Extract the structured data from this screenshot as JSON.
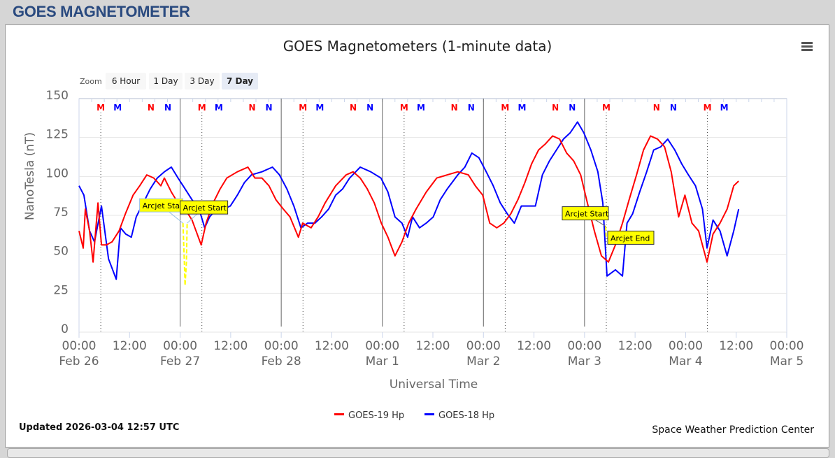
{
  "page_header": "GOES MAGNETOMETER",
  "zoom": {
    "label": "Zoom",
    "buttons": [
      "6 Hour",
      "1 Day",
      "3 Day",
      "7 Day"
    ],
    "selected": "7 Day"
  },
  "updated": "Updated 2026-03-04 12:57 UTC",
  "credit": "Space Weather Prediction Center",
  "menu_icon": "hamburger-menu-icon",
  "chart_data": {
    "type": "line",
    "title": "GOES Magnetometers (1-minute data)",
    "xlabel": "Universal Time",
    "ylabel": "NanoTesla (nT)",
    "ylim": [
      0,
      150
    ],
    "yticks": [
      "0",
      "25",
      "50",
      "75",
      "100",
      "125",
      "150"
    ],
    "xlim": [
      "2026-02-26T00:00",
      "2026-03-05T00:00"
    ],
    "xticks": [
      {
        "t": "2026-02-26T00:00",
        "time": "00:00",
        "date": "Feb 26"
      },
      {
        "t": "2026-02-26T12:00",
        "time": "12:00",
        "date": ""
      },
      {
        "t": "2026-02-27T00:00",
        "time": "00:00",
        "date": "Feb 27"
      },
      {
        "t": "2026-02-27T12:00",
        "time": "12:00",
        "date": ""
      },
      {
        "t": "2026-02-28T00:00",
        "time": "00:00",
        "date": "Feb 28"
      },
      {
        "t": "2026-02-28T12:00",
        "time": "12:00",
        "date": ""
      },
      {
        "t": "2026-03-01T00:00",
        "time": "00:00",
        "date": "Mar 1"
      },
      {
        "t": "2026-03-01T12:00",
        "time": "12:00",
        "date": ""
      },
      {
        "t": "2026-03-02T00:00",
        "time": "00:00",
        "date": "Mar 2"
      },
      {
        "t": "2026-03-02T12:00",
        "time": "12:00",
        "date": ""
      },
      {
        "t": "2026-03-03T00:00",
        "time": "00:00",
        "date": "Mar 3"
      },
      {
        "t": "2026-03-03T12:00",
        "time": "12:00",
        "date": ""
      },
      {
        "t": "2026-03-04T00:00",
        "time": "00:00",
        "date": "Mar 4"
      },
      {
        "t": "2026-03-04T12:00",
        "time": "12:00",
        "date": ""
      },
      {
        "t": "2026-03-05T00:00",
        "time": "00:00",
        "date": "Mar 5"
      }
    ],
    "grid": true,
    "legend_position": "bottom",
    "series": [
      {
        "name": "GOES-19 Hp",
        "color": "#ff0000",
        "points": [
          [
            "2026-02-26T00:00",
            65
          ],
          [
            "2026-02-26T01:00",
            54
          ],
          [
            "2026-02-26T01:30",
            79
          ],
          [
            "2026-02-26T02:30",
            65
          ],
          [
            "2026-02-26T03:20",
            45
          ],
          [
            "2026-02-26T04:30",
            83
          ],
          [
            "2026-02-26T05:20",
            56
          ],
          [
            "2026-02-26T06:30",
            56
          ],
          [
            "2026-02-26T07:50",
            58
          ],
          [
            "2026-02-26T09:30",
            65
          ],
          [
            "2026-02-26T11:00",
            76
          ],
          [
            "2026-02-26T12:50",
            88
          ],
          [
            "2026-02-26T14:25",
            94
          ],
          [
            "2026-02-26T16:05",
            101
          ],
          [
            "2026-02-26T17:45",
            99
          ],
          [
            "2026-02-26T19:25",
            94
          ],
          [
            "2026-02-26T20:15",
            99
          ],
          [
            "2026-02-26T21:55",
            90
          ],
          [
            "2026-02-26T23:30",
            83
          ],
          [
            "2026-02-27T01:10",
            79
          ],
          [
            "2026-02-27T02:50",
            72
          ],
          [
            "2026-02-27T05:00",
            56
          ],
          [
            "2026-02-27T06:10",
            70
          ],
          [
            "2026-02-27T07:50",
            83
          ],
          [
            "2026-02-27T09:30",
            92
          ],
          [
            "2026-02-27T11:05",
            99
          ],
          [
            "2026-02-27T13:35",
            103
          ],
          [
            "2026-02-27T16:05",
            106
          ],
          [
            "2026-02-27T17:45",
            99
          ],
          [
            "2026-02-27T19:25",
            99
          ],
          [
            "2026-02-27T21:05",
            94
          ],
          [
            "2026-02-27T22:45",
            85
          ],
          [
            "2026-02-28T00:30",
            79
          ],
          [
            "2026-02-28T02:05",
            74
          ],
          [
            "2026-02-28T04:05",
            61
          ],
          [
            "2026-02-28T05:05",
            70
          ],
          [
            "2026-02-28T07:05",
            67
          ],
          [
            "2026-02-28T08:45",
            74
          ],
          [
            "2026-02-28T10:25",
            83
          ],
          [
            "2026-02-28T12:55",
            94
          ],
          [
            "2026-02-28T15:25",
            101
          ],
          [
            "2026-02-28T17:05",
            103
          ],
          [
            "2026-02-28T18:45",
            99
          ],
          [
            "2026-02-28T20:25",
            92
          ],
          [
            "2026-02-28T22:05",
            83
          ],
          [
            "2026-02-28T23:45",
            70
          ],
          [
            "2026-03-01T01:20",
            61
          ],
          [
            "2026-03-01T03:00",
            49
          ],
          [
            "2026-03-01T04:40",
            58
          ],
          [
            "2026-03-01T06:15",
            70
          ],
          [
            "2026-03-01T08:00",
            79
          ],
          [
            "2026-03-01T10:25",
            90
          ],
          [
            "2026-03-01T12:55",
            99
          ],
          [
            "2026-03-01T15:25",
            101
          ],
          [
            "2026-03-01T17:55",
            103
          ],
          [
            "2026-03-01T20:25",
            101
          ],
          [
            "2026-03-01T22:05",
            94
          ],
          [
            "2026-03-01T23:50",
            88
          ],
          [
            "2026-03-02T01:30",
            70
          ],
          [
            "2026-03-02T03:10",
            67
          ],
          [
            "2026-03-02T04:50",
            70
          ],
          [
            "2026-03-02T06:30",
            76
          ],
          [
            "2026-03-02T08:10",
            85
          ],
          [
            "2026-03-02T09:50",
            96
          ],
          [
            "2026-03-02T11:25",
            108
          ],
          [
            "2026-03-02T13:05",
            117
          ],
          [
            "2026-03-02T14:45",
            121
          ],
          [
            "2026-03-02T16:25",
            126
          ],
          [
            "2026-03-02T18:05",
            124
          ],
          [
            "2026-03-02T19:45",
            115
          ],
          [
            "2026-03-02T21:25",
            110
          ],
          [
            "2026-03-02T23:05",
            101
          ],
          [
            "2026-03-03T00:40",
            83
          ],
          [
            "2026-03-03T02:20",
            65
          ],
          [
            "2026-03-03T04:00",
            49
          ],
          [
            "2026-03-03T05:40",
            45
          ],
          [
            "2026-03-03T07:20",
            56
          ],
          [
            "2026-03-03T09:00",
            70
          ],
          [
            "2026-03-03T10:35",
            85
          ],
          [
            "2026-03-03T12:20",
            101
          ],
          [
            "2026-03-03T14:00",
            117
          ],
          [
            "2026-03-03T15:40",
            126
          ],
          [
            "2026-03-03T17:20",
            124
          ],
          [
            "2026-03-03T19:00",
            119
          ],
          [
            "2026-03-03T20:35",
            103
          ],
          [
            "2026-03-03T22:20",
            74
          ],
          [
            "2026-03-03T23:50",
            88
          ],
          [
            "2026-03-04T01:30",
            70
          ],
          [
            "2026-03-04T03:05",
            65
          ],
          [
            "2026-03-04T05:05",
            45
          ],
          [
            "2026-03-04T06:30",
            63
          ],
          [
            "2026-03-04T08:10",
            70
          ],
          [
            "2026-03-04T09:50",
            79
          ],
          [
            "2026-03-04T11:25",
            94
          ],
          [
            "2026-03-04T12:35",
            97
          ]
        ]
      },
      {
        "name": "GOES-18 Hp",
        "color": "#0000ff",
        "points": [
          [
            "2026-02-26T00:00",
            94
          ],
          [
            "2026-02-26T01:10",
            88
          ],
          [
            "2026-02-26T02:30",
            65
          ],
          [
            "2026-02-26T03:40",
            58
          ],
          [
            "2026-02-26T05:20",
            81
          ],
          [
            "2026-02-26T07:00",
            47
          ],
          [
            "2026-02-26T08:50",
            34
          ],
          [
            "2026-02-26T09:50",
            67
          ],
          [
            "2026-02-26T11:05",
            63
          ],
          [
            "2026-02-26T12:25",
            61
          ],
          [
            "2026-02-26T13:35",
            74
          ],
          [
            "2026-02-26T15:15",
            83
          ],
          [
            "2026-02-26T16:55",
            92
          ],
          [
            "2026-02-26T18:35",
            99
          ],
          [
            "2026-02-26T20:15",
            103
          ],
          [
            "2026-02-26T21:55",
            106
          ],
          [
            "2026-02-26T23:30",
            99
          ],
          [
            "2026-02-27T01:10",
            92
          ],
          [
            "2026-02-27T02:50",
            85
          ],
          [
            "2026-02-27T04:30",
            79
          ],
          [
            "2026-02-27T05:50",
            67
          ],
          [
            "2026-02-27T07:00",
            74
          ],
          [
            "2026-02-27T08:35",
            79
          ],
          [
            "2026-02-27T10:15",
            79
          ],
          [
            "2026-02-27T11:55",
            81
          ],
          [
            "2026-02-27T13:35",
            88
          ],
          [
            "2026-02-27T15:15",
            96
          ],
          [
            "2026-02-27T16:55",
            101
          ],
          [
            "2026-02-27T19:25",
            103
          ],
          [
            "2026-02-27T21:55",
            106
          ],
          [
            "2026-02-27T23:35",
            101
          ],
          [
            "2026-02-28T01:20",
            92
          ],
          [
            "2026-02-28T03:00",
            81
          ],
          [
            "2026-02-28T04:40",
            67
          ],
          [
            "2026-02-28T06:15",
            70
          ],
          [
            "2026-02-28T08:00",
            70
          ],
          [
            "2026-02-28T09:35",
            74
          ],
          [
            "2026-02-28T11:15",
            79
          ],
          [
            "2026-02-28T12:55",
            88
          ],
          [
            "2026-02-28T14:35",
            92
          ],
          [
            "2026-02-28T16:15",
            99
          ],
          [
            "2026-02-28T18:45",
            106
          ],
          [
            "2026-02-28T21:15",
            103
          ],
          [
            "2026-02-28T23:40",
            99
          ],
          [
            "2026-03-01T01:20",
            90
          ],
          [
            "2026-03-01T03:00",
            74
          ],
          [
            "2026-03-01T04:40",
            70
          ],
          [
            "2026-03-01T06:00",
            61
          ],
          [
            "2026-03-01T07:10",
            74
          ],
          [
            "2026-03-01T08:50",
            67
          ],
          [
            "2026-03-01T10:25",
            70
          ],
          [
            "2026-03-01T12:05",
            74
          ],
          [
            "2026-03-01T13:45",
            85
          ],
          [
            "2026-03-01T15:25",
            92
          ],
          [
            "2026-03-01T17:55",
            101
          ],
          [
            "2026-03-01T19:35",
            106
          ],
          [
            "2026-03-01T21:15",
            115
          ],
          [
            "2026-03-01T22:55",
            112
          ],
          [
            "2026-03-02T00:40",
            103
          ],
          [
            "2026-03-02T02:20",
            94
          ],
          [
            "2026-03-02T04:00",
            83
          ],
          [
            "2026-03-02T05:40",
            76
          ],
          [
            "2026-03-02T07:20",
            70
          ],
          [
            "2026-03-02T09:00",
            81
          ],
          [
            "2026-03-02T10:35",
            81
          ],
          [
            "2026-03-02T12:20",
            81
          ],
          [
            "2026-03-02T14:00",
            101
          ],
          [
            "2026-03-02T15:40",
            110
          ],
          [
            "2026-03-02T17:20",
            117
          ],
          [
            "2026-03-02T19:00",
            124
          ],
          [
            "2026-03-02T20:35",
            128
          ],
          [
            "2026-03-02T22:20",
            135
          ],
          [
            "2026-03-02T23:50",
            128
          ],
          [
            "2026-03-03T01:30",
            117
          ],
          [
            "2026-03-03T03:10",
            103
          ],
          [
            "2026-03-03T04:20",
            83
          ],
          [
            "2026-03-03T05:20",
            36
          ],
          [
            "2026-03-03T07:20",
            40
          ],
          [
            "2026-03-03T09:00",
            36
          ],
          [
            "2026-03-03T10:05",
            70
          ],
          [
            "2026-03-03T11:25",
            76
          ],
          [
            "2026-03-03T13:05",
            90
          ],
          [
            "2026-03-03T14:45",
            103
          ],
          [
            "2026-03-03T16:25",
            117
          ],
          [
            "2026-03-03T18:05",
            119
          ],
          [
            "2026-03-03T19:45",
            124
          ],
          [
            "2026-03-03T21:25",
            117
          ],
          [
            "2026-03-03T23:05",
            108
          ],
          [
            "2026-03-04T00:40",
            101
          ],
          [
            "2026-03-04T02:20",
            94
          ],
          [
            "2026-03-04T04:00",
            79
          ],
          [
            "2026-03-04T05:05",
            54
          ],
          [
            "2026-03-04T06:30",
            72
          ],
          [
            "2026-03-04T08:10",
            65
          ],
          [
            "2026-03-04T09:50",
            49
          ],
          [
            "2026-03-04T11:25",
            65
          ],
          [
            "2026-03-04T12:35",
            79
          ]
        ]
      }
    ],
    "arcjet_segments": [
      {
        "color": "#ffff00",
        "points": [
          [
            "2026-02-27T00:40",
            70
          ],
          [
            "2026-02-27T01:00",
            45
          ],
          [
            "2026-02-27T01:10",
            30
          ],
          [
            "2026-02-27T01:30",
            45
          ],
          [
            "2026-02-27T01:40",
            70
          ]
        ]
      },
      {
        "color": "#ffff00",
        "points": [
          [
            "2026-03-03T05:00",
            68
          ],
          [
            "2026-03-03T05:10",
            60
          ]
        ]
      }
    ],
    "markers": [
      {
        "label": "M",
        "sat": "GOES-19",
        "color": "#ff0000",
        "times": [
          "2026-02-26T05:10",
          "2026-02-27T05:10",
          "2026-02-28T05:10",
          "2026-03-01T05:10",
          "2026-03-02T05:10",
          "2026-03-03T05:10",
          "2026-03-04T05:10"
        ]
      },
      {
        "label": "M",
        "sat": "GOES-18",
        "color": "#0000ff",
        "times": [
          "2026-02-26T09:10",
          "2026-02-27T09:10",
          "2026-02-28T09:10",
          "2026-03-01T09:10",
          "2026-03-02T09:10",
          "2026-03-04T09:10"
        ]
      },
      {
        "label": "N",
        "sat": "GOES-19",
        "color": "#ff0000",
        "times": [
          "2026-02-26T17:05",
          "2026-02-27T17:05",
          "2026-02-28T17:05",
          "2026-03-01T17:05",
          "2026-03-02T17:05",
          "2026-03-03T17:05"
        ]
      },
      {
        "label": "N",
        "sat": "GOES-18",
        "color": "#0000ff",
        "times": [
          "2026-02-26T21:05",
          "2026-02-27T21:05",
          "2026-02-28T21:05",
          "2026-03-01T21:05",
          "2026-03-02T21:05",
          "2026-03-03T21:05"
        ]
      }
    ],
    "vertical_lines": [
      "2026-02-27T00:00",
      "2026-02-28T00:00",
      "2026-03-01T00:00",
      "2026-03-02T00:00",
      "2026-03-03T00:00"
    ],
    "annotations": [
      {
        "text": "Arcjet Start",
        "t": "2026-02-27T00:40",
        "y": 70
      },
      {
        "text": "Arcjet Start",
        "t": "2026-02-27T01:40",
        "y": 70
      },
      {
        "text": "Arcjet Start",
        "t": "2026-03-03T05:00",
        "y": 68
      },
      {
        "text": "Arcjet End",
        "t": "2026-03-03T05:10",
        "y": 60
      }
    ]
  }
}
